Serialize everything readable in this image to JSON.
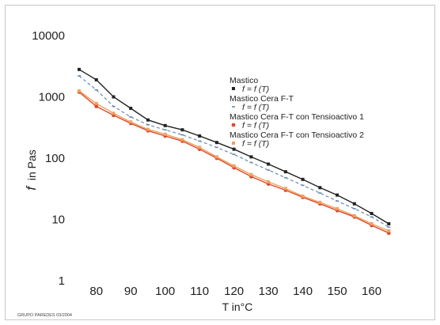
{
  "chart_data": {
    "type": "line",
    "title": "",
    "xlabel": "T in°C",
    "ylabel": "f in Pas",
    "ylabel_symbol": "f",
    "ylabel_unit": "in Pas",
    "y_scale": "log",
    "ylim": [
      1,
      10000
    ],
    "xlim": [
      75,
      167
    ],
    "x_ticks": [
      "80",
      "90",
      "100",
      "110",
      "120",
      "130",
      "140",
      "150",
      "160"
    ],
    "y_ticks": [
      "1",
      "10",
      "100",
      "1000",
      "10000"
    ],
    "legend_position": "right",
    "grid": false,
    "x": [
      75,
      80,
      85,
      90,
      95,
      100,
      105,
      110,
      115,
      120,
      125,
      130,
      135,
      140,
      145,
      150,
      155,
      160,
      165
    ],
    "series": [
      {
        "name": "Mastico",
        "formula": "f = f (T)",
        "color": "#222222",
        "marker": "square",
        "values": [
          2800,
          1900,
          1000,
          650,
          420,
          340,
          290,
          230,
          180,
          140,
          105,
          80,
          60,
          45,
          33,
          25,
          18,
          12.5,
          8.5
        ]
      },
      {
        "name": "Mastico Cera F-T",
        "formula": "f = f (T)",
        "color": "#6a8ab0",
        "marker": "dash",
        "values": [
          2200,
          1300,
          700,
          470,
          350,
          290,
          240,
          190,
          150,
          115,
          85,
          64,
          48,
          36,
          27,
          20,
          15,
          11,
          7.5
        ]
      },
      {
        "name": "Mastico Cera F-T con Tensioactivo 1",
        "formula": "f = f (T)",
        "color": "#d94a2a",
        "marker": "circle",
        "values": [
          1200,
          700,
          500,
          370,
          280,
          230,
          190,
          140,
          100,
          70,
          50,
          38,
          30,
          23,
          18,
          14,
          11,
          8,
          6
        ]
      },
      {
        "name": "Mastico Cera F-T con Tensioactivo 2",
        "formula": "f = f (T)",
        "color": "#f0a060",
        "marker": "square",
        "values": [
          1250,
          780,
          540,
          390,
          295,
          245,
          200,
          150,
          105,
          75,
          54,
          41,
          32,
          24,
          19,
          15,
          11.5,
          8.5,
          6.5
        ]
      }
    ]
  },
  "footer_text": "GRUPO PAREDES 03/2004"
}
